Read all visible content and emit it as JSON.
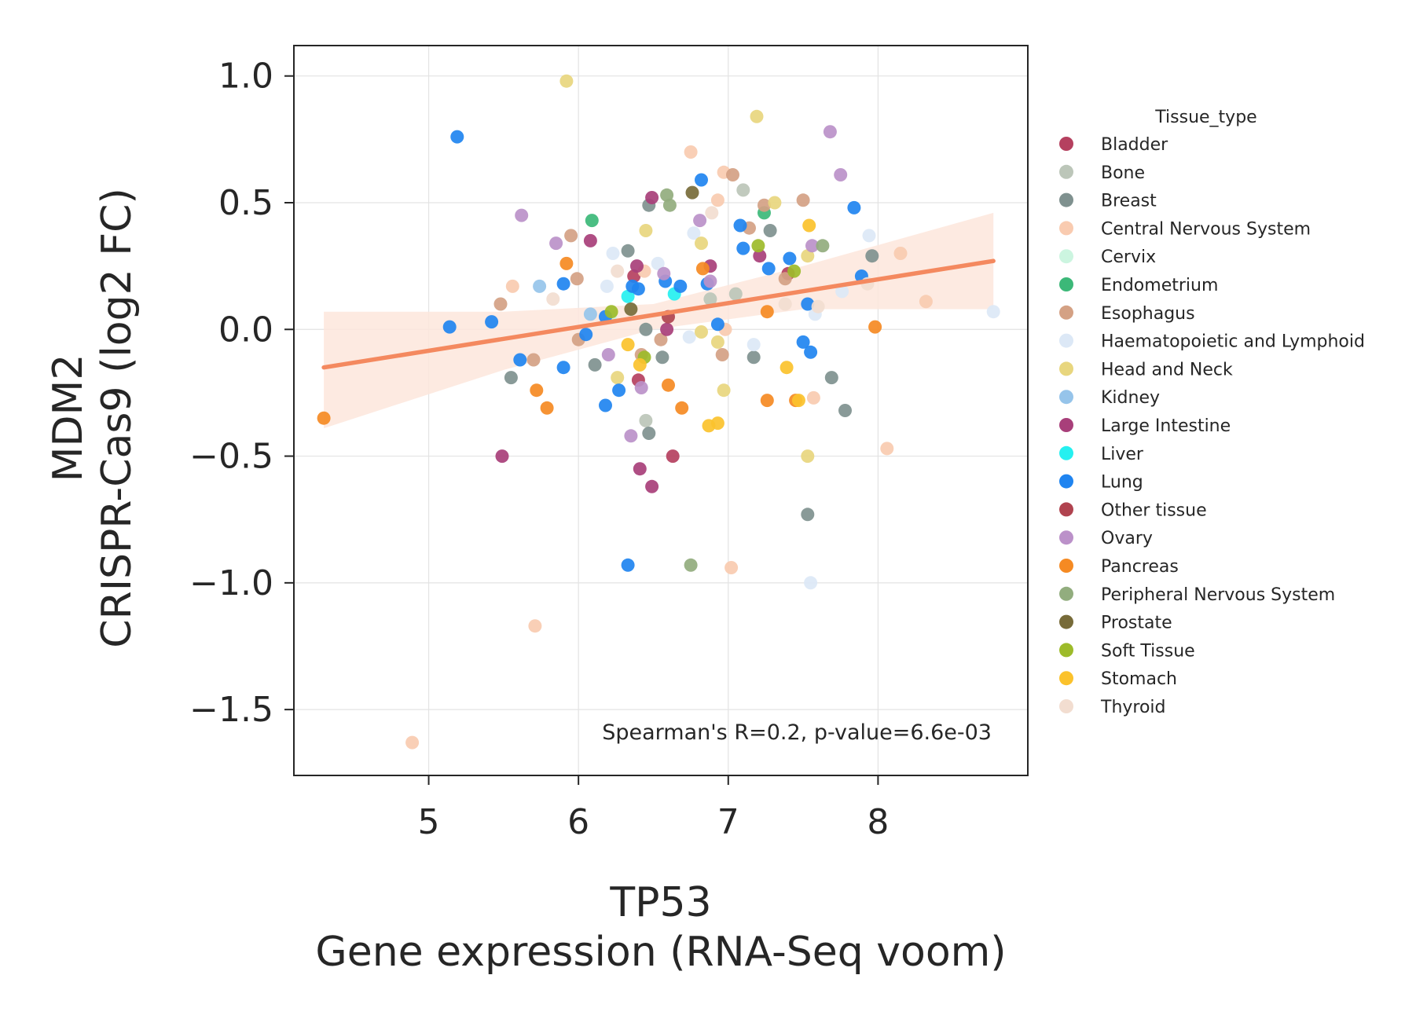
{
  "chart_data": {
    "type": "scatter",
    "xlabel_line1": "TP53",
    "xlabel_line2": "Gene expression (RNA-Seq voom)",
    "ylabel_line1": "MDM2",
    "ylabel_line2": "CRISPR-Cas9 (log2 FC)",
    "xlim": [
      4.1,
      9.0
    ],
    "ylim": [
      -1.76,
      1.12
    ],
    "xticks": [
      5,
      6,
      7,
      8
    ],
    "yticks": [
      1.0,
      0.5,
      0.0,
      -0.5,
      -1.0,
      -1.5
    ],
    "xtick_labels": [
      "5",
      "6",
      "7",
      "8"
    ],
    "ytick_labels": [
      "1.0",
      "0.5",
      "0.0",
      "−0.5",
      "−1.0",
      "−1.5"
    ],
    "grid": true,
    "annotation": "Spearman's R=0.2, p-value=6.6e-03",
    "regression": {
      "x": [
        4.3,
        8.77
      ],
      "y": [
        -0.15,
        0.27
      ],
      "ci_upper": [
        [
          4.3,
          0.07
        ],
        [
          5.5,
          0.07
        ],
        [
          6.5,
          0.1
        ],
        [
          7.5,
          0.25
        ],
        [
          8.77,
          0.46
        ]
      ],
      "ci_lower": [
        [
          4.3,
          -0.39
        ],
        [
          5.5,
          -0.16
        ],
        [
          6.5,
          0.0
        ],
        [
          7.5,
          0.08
        ],
        [
          8.77,
          0.08
        ]
      ],
      "line_color": "#f4895f",
      "band_color": "#fde6dc"
    },
    "legend": {
      "title": "Tissue_type",
      "placement": "right",
      "entries": [
        {
          "name": "Bladder",
          "color": "#b5405f"
        },
        {
          "name": "Bone",
          "color": "#bcc6b9"
        },
        {
          "name": "Breast",
          "color": "#7f918f"
        },
        {
          "name": "Central Nervous System",
          "color": "#f9cbb0"
        },
        {
          "name": "Cervix",
          "color": "#ccf5e0"
        },
        {
          "name": "Endometrium",
          "color": "#3cb878"
        },
        {
          "name": "Esophagus",
          "color": "#d4a184"
        },
        {
          "name": "Haematopoietic and Lymphoid",
          "color": "#dce8f6"
        },
        {
          "name": "Head and Neck",
          "color": "#e8d67e"
        },
        {
          "name": "Kidney",
          "color": "#96c4ea"
        },
        {
          "name": "Large Intestine",
          "color": "#a83f7a"
        },
        {
          "name": "Liver",
          "color": "#25f0f0"
        },
        {
          "name": "Lung",
          "color": "#1f84f0"
        },
        {
          "name": "Other tissue",
          "color": "#b0434f"
        },
        {
          "name": "Ovary",
          "color": "#bb91c9"
        },
        {
          "name": "Pancreas",
          "color": "#f58a23"
        },
        {
          "name": "Peripheral Nervous System",
          "color": "#92ad7e"
        },
        {
          "name": "Prostate",
          "color": "#776b39"
        },
        {
          "name": "Soft Tissue",
          "color": "#9dbb2a"
        },
        {
          "name": "Stomach",
          "color": "#fbc22c"
        },
        {
          "name": "Thyroid",
          "color": "#f2ddd0"
        }
      ]
    },
    "series": [
      {
        "name": "Bladder",
        "points": [
          [
            6.4,
            -0.2
          ],
          [
            7.4,
            0.22
          ],
          [
            6.37,
            0.21
          ],
          [
            6.63,
            -0.5
          ]
        ]
      },
      {
        "name": "Bone",
        "points": [
          [
            7.1,
            0.55
          ],
          [
            6.45,
            -0.36
          ],
          [
            6.88,
            0.12
          ],
          [
            7.05,
            0.14
          ]
        ]
      },
      {
        "name": "Breast",
        "points": [
          [
            5.55,
            -0.19
          ],
          [
            6.33,
            0.31
          ],
          [
            6.45,
            0.0
          ],
          [
            6.47,
            0.49
          ],
          [
            6.47,
            -0.41
          ],
          [
            6.56,
            -0.11
          ],
          [
            6.11,
            -0.14
          ],
          [
            7.17,
            -0.11
          ],
          [
            7.28,
            0.39
          ],
          [
            7.53,
            -0.73
          ],
          [
            7.69,
            -0.19
          ],
          [
            7.78,
            -0.32
          ],
          [
            7.96,
            0.29
          ]
        ]
      },
      {
        "name": "Central Nervous System",
        "points": [
          [
            4.89,
            -1.63
          ],
          [
            5.71,
            -1.17
          ],
          [
            5.56,
            0.17
          ],
          [
            6.75,
            0.7
          ],
          [
            6.97,
            0.62
          ],
          [
            6.93,
            0.51
          ],
          [
            7.02,
            -0.94
          ],
          [
            7.57,
            -0.27
          ],
          [
            8.06,
            -0.47
          ],
          [
            8.15,
            0.3
          ],
          [
            8.32,
            0.11
          ],
          [
            6.44,
            0.23
          ],
          [
            6.98,
            0.0
          ]
        ]
      },
      {
        "name": "Cervix",
        "points": [
          [
            6.21,
            0.05
          ]
        ]
      },
      {
        "name": "Endometrium",
        "points": [
          [
            6.09,
            0.43
          ],
          [
            7.24,
            0.46
          ]
        ]
      },
      {
        "name": "Esophagus",
        "points": [
          [
            5.48,
            0.1
          ],
          [
            5.7,
            -0.12
          ],
          [
            5.95,
            0.37
          ],
          [
            5.99,
            0.2
          ],
          [
            6.0,
            -0.04
          ],
          [
            7.03,
            0.61
          ],
          [
            7.14,
            0.4
          ],
          [
            7.24,
            0.49
          ],
          [
            7.5,
            0.51
          ],
          [
            7.38,
            0.2
          ],
          [
            6.55,
            -0.04
          ],
          [
            6.96,
            -0.1
          ],
          [
            6.42,
            -0.1
          ]
        ]
      },
      {
        "name": "Haematopoietic and Lymphoid",
        "points": [
          [
            6.23,
            0.3
          ],
          [
            6.19,
            0.17
          ],
          [
            6.53,
            0.26
          ],
          [
            6.77,
            0.38
          ],
          [
            7.17,
            -0.06
          ],
          [
            7.58,
            0.06
          ],
          [
            7.76,
            0.15
          ],
          [
            7.94,
            0.37
          ],
          [
            7.55,
            -1.0
          ],
          [
            8.77,
            0.07
          ],
          [
            6.74,
            -0.03
          ]
        ]
      },
      {
        "name": "Head and Neck",
        "points": [
          [
            5.92,
            0.98
          ],
          [
            6.45,
            0.39
          ],
          [
            6.82,
            0.34
          ],
          [
            6.93,
            -0.05
          ],
          [
            6.97,
            -0.24
          ],
          [
            7.19,
            0.84
          ],
          [
            7.31,
            0.5
          ],
          [
            7.53,
            0.29
          ],
          [
            7.53,
            -0.5
          ],
          [
            6.82,
            -0.01
          ],
          [
            6.26,
            -0.19
          ]
        ]
      },
      {
        "name": "Kidney",
        "points": [
          [
            5.74,
            0.17
          ],
          [
            6.08,
            0.06
          ]
        ]
      },
      {
        "name": "Large Intestine",
        "points": [
          [
            5.49,
            -0.5
          ],
          [
            6.08,
            0.35
          ],
          [
            6.39,
            0.25
          ],
          [
            6.41,
            -0.55
          ],
          [
            6.49,
            -0.62
          ],
          [
            6.49,
            0.52
          ],
          [
            6.88,
            0.25
          ],
          [
            6.59,
            0.0
          ],
          [
            7.21,
            0.29
          ]
        ]
      },
      {
        "name": "Liver",
        "points": [
          [
            6.33,
            0.13
          ],
          [
            6.64,
            0.14
          ]
        ]
      },
      {
        "name": "Lung",
        "points": [
          [
            5.19,
            0.76
          ],
          [
            5.14,
            0.01
          ],
          [
            5.42,
            0.03
          ],
          [
            5.61,
            -0.12
          ],
          [
            5.9,
            0.18
          ],
          [
            5.9,
            -0.15
          ],
          [
            6.05,
            -0.02
          ],
          [
            6.18,
            -0.3
          ],
          [
            6.27,
            -0.24
          ],
          [
            6.33,
            -0.93
          ],
          [
            6.36,
            0.17
          ],
          [
            6.4,
            0.16
          ],
          [
            6.58,
            0.19
          ],
          [
            6.68,
            0.17
          ],
          [
            6.82,
            0.59
          ],
          [
            6.86,
            0.18
          ],
          [
            6.93,
            0.02
          ],
          [
            7.08,
            0.41
          ],
          [
            7.1,
            0.32
          ],
          [
            7.27,
            0.24
          ],
          [
            7.41,
            0.28
          ],
          [
            7.5,
            -0.05
          ],
          [
            7.55,
            -0.09
          ],
          [
            7.53,
            0.1
          ],
          [
            7.84,
            0.48
          ],
          [
            7.89,
            0.21
          ],
          [
            6.18,
            0.05
          ]
        ]
      },
      {
        "name": "Other tissue",
        "points": [
          [
            6.6,
            0.05
          ]
        ]
      },
      {
        "name": "Ovary",
        "points": [
          [
            5.62,
            0.45
          ],
          [
            5.85,
            0.34
          ],
          [
            6.35,
            -0.42
          ],
          [
            6.42,
            -0.23
          ],
          [
            6.57,
            0.22
          ],
          [
            6.81,
            0.43
          ],
          [
            6.88,
            0.19
          ],
          [
            7.68,
            0.78
          ],
          [
            7.75,
            0.61
          ],
          [
            7.56,
            0.33
          ],
          [
            6.2,
            -0.1
          ]
        ]
      },
      {
        "name": "Pancreas",
        "points": [
          [
            4.3,
            -0.35
          ],
          [
            5.72,
            -0.24
          ],
          [
            5.79,
            -0.31
          ],
          [
            5.92,
            0.26
          ],
          [
            6.6,
            -0.22
          ],
          [
            6.69,
            -0.31
          ],
          [
            6.83,
            0.24
          ],
          [
            7.26,
            0.07
          ],
          [
            7.26,
            -0.28
          ],
          [
            7.45,
            -0.28
          ],
          [
            7.98,
            0.01
          ]
        ]
      },
      {
        "name": "Peripheral Nervous System",
        "points": [
          [
            6.59,
            0.53
          ],
          [
            6.61,
            0.49
          ],
          [
            6.75,
            -0.93
          ],
          [
            7.63,
            0.33
          ]
        ]
      },
      {
        "name": "Prostate",
        "points": [
          [
            6.76,
            0.54
          ],
          [
            6.35,
            0.08
          ]
        ]
      },
      {
        "name": "Soft Tissue",
        "points": [
          [
            6.44,
            -0.11
          ],
          [
            7.2,
            0.33
          ],
          [
            7.44,
            0.23
          ],
          [
            6.22,
            0.07
          ]
        ]
      },
      {
        "name": "Stomach",
        "points": [
          [
            6.33,
            -0.06
          ],
          [
            6.41,
            -0.14
          ],
          [
            6.87,
            -0.38
          ],
          [
            6.93,
            -0.37
          ],
          [
            7.39,
            -0.15
          ],
          [
            7.47,
            -0.28
          ],
          [
            7.54,
            0.41
          ]
        ]
      },
      {
        "name": "Thyroid",
        "points": [
          [
            5.83,
            0.12
          ],
          [
            7.38,
            0.1
          ],
          [
            7.6,
            0.09
          ],
          [
            7.93,
            0.18
          ],
          [
            6.26,
            0.23
          ],
          [
            6.89,
            0.46
          ]
        ]
      }
    ]
  }
}
